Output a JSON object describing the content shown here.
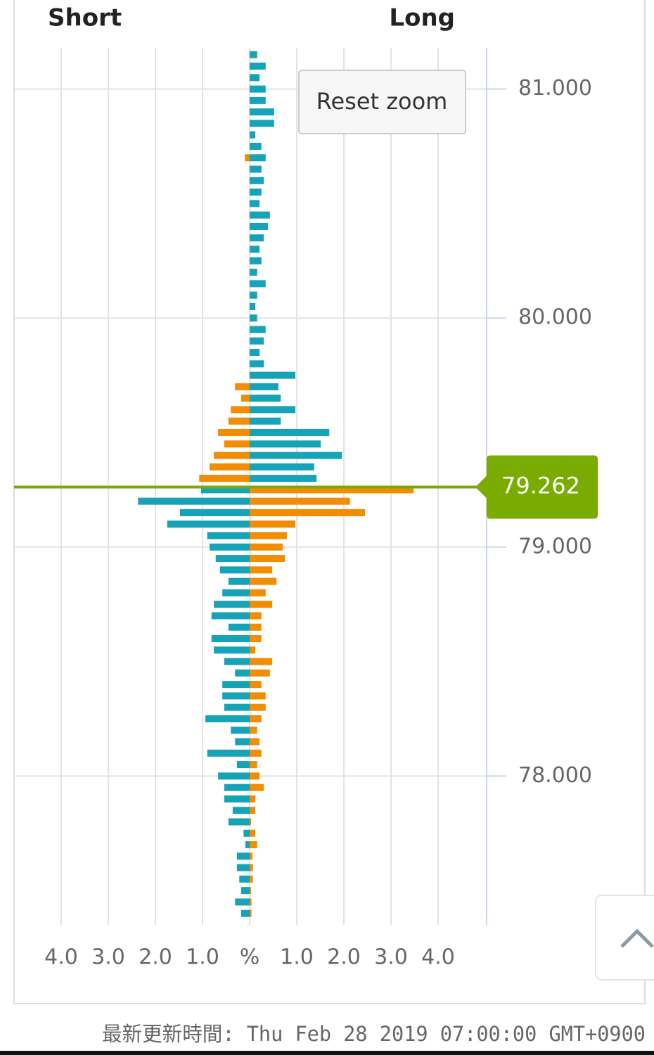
{
  "chart_data": {
    "type": "butterfly-bar",
    "headers": [
      "Short",
      "Long"
    ],
    "y": [
      81.15,
      81.1,
      81.05,
      81,
      80.95,
      80.9,
      80.85,
      80.8,
      80.75,
      80.7,
      80.65,
      80.6,
      80.55,
      80.5,
      80.45,
      80.4,
      80.35,
      80.3,
      80.25,
      80.2,
      80.15,
      80.1,
      80.05,
      80,
      79.95,
      79.9,
      79.85,
      79.8,
      79.75,
      79.7,
      79.65,
      79.6,
      79.55,
      79.5,
      79.45,
      79.4,
      79.35,
      79.3,
      79.25,
      79.2,
      79.15,
      79.1,
      79.05,
      79,
      78.95,
      78.9,
      78.85,
      78.8,
      78.75,
      78.7,
      78.65,
      78.6,
      78.55,
      78.5,
      78.45,
      78.4,
      78.35,
      78.3,
      78.25,
      78.2,
      78.15,
      78.1,
      78.05,
      78,
      77.95,
      77.9,
      77.85,
      77.8,
      77.75,
      77.7,
      77.65,
      77.6,
      77.55,
      77.5,
      77.45,
      77.4
    ],
    "series": [
      {
        "name": "Short",
        "side": "left",
        "color_above": "#f28c00",
        "color_below": "#16a3b8",
        "values": [
          0,
          0,
          0,
          0,
          0,
          0,
          0,
          0,
          0,
          0.1,
          0,
          0,
          0,
          0,
          0,
          0,
          0,
          0,
          0,
          0,
          0,
          0,
          0,
          0,
          0,
          0,
          0,
          0,
          0,
          0.31,
          0.18,
          0.4,
          0.45,
          0.67,
          0.54,
          0.76,
          0.85,
          1.07,
          1.03,
          2.37,
          1.48,
          1.75,
          0.9,
          0.85,
          0.72,
          0.63,
          0.45,
          0.58,
          0.76,
          0.81,
          0.45,
          0.81,
          0.76,
          0.54,
          0.31,
          0.58,
          0.58,
          0.54,
          0.94,
          0.4,
          0.31,
          0.9,
          0.27,
          0.67,
          0.54,
          0.54,
          0.36,
          0.45,
          0.13,
          0.09,
          0.27,
          0.27,
          0.22,
          0.18,
          0.31,
          0.18
        ]
      },
      {
        "name": "Long",
        "side": "right",
        "color_above": "#16a3b8",
        "color_below": "#f28c00",
        "values": [
          0.16,
          0.34,
          0.21,
          0.34,
          0.34,
          0.52,
          0.52,
          0.12,
          0.25,
          0.34,
          0.25,
          0.3,
          0.25,
          0.21,
          0.43,
          0.39,
          0.3,
          0.21,
          0.25,
          0.16,
          0.34,
          0.16,
          0.12,
          0.16,
          0.34,
          0.3,
          0.21,
          0.3,
          0.97,
          0.61,
          0.66,
          0.97,
          0.66,
          1.69,
          1.51,
          1.96,
          1.37,
          1.42,
          3.48,
          2.13,
          2.45,
          0.97,
          0.79,
          0.7,
          0.75,
          0.48,
          0.57,
          0.34,
          0.48,
          0.25,
          0.25,
          0.25,
          0.12,
          0.48,
          0.43,
          0.25,
          0.34,
          0.34,
          0.25,
          0.16,
          0.21,
          0.25,
          0.16,
          0.21,
          0.3,
          0.12,
          0.12,
          0.03,
          0.12,
          0.16,
          0.06,
          0.07,
          0.07,
          0.03,
          0.04,
          0.04
        ]
      }
    ],
    "current_price": 79.262,
    "price_color": "#7aab00",
    "ylim": [
      77.35,
      81.18
    ],
    "yticks": [
      {
        "value": 78,
        "label": "78.000"
      },
      {
        "value": 79,
        "label": "79.000"
      },
      {
        "value": 80,
        "label": "80.000"
      },
      {
        "value": 81,
        "label": "81.000"
      }
    ],
    "xlim": [
      -5,
      5
    ],
    "xticks": [
      {
        "value": -4,
        "label": "4.0"
      },
      {
        "value": -3,
        "label": "3.0"
      },
      {
        "value": -2,
        "label": "2.0"
      },
      {
        "value": -1,
        "label": "1.0"
      },
      {
        "value": 0,
        "label": "%"
      },
      {
        "value": 1,
        "label": "1.0"
      },
      {
        "value": 2,
        "label": "2.0"
      },
      {
        "value": 3,
        "label": "3.0"
      },
      {
        "value": 4,
        "label": "4.0"
      }
    ],
    "grid": true
  },
  "ui": {
    "reset_zoom": "Reset zoom",
    "footer": "最新更新時間: Thu Feb 28 2019 07:00:00 GMT+0900"
  }
}
